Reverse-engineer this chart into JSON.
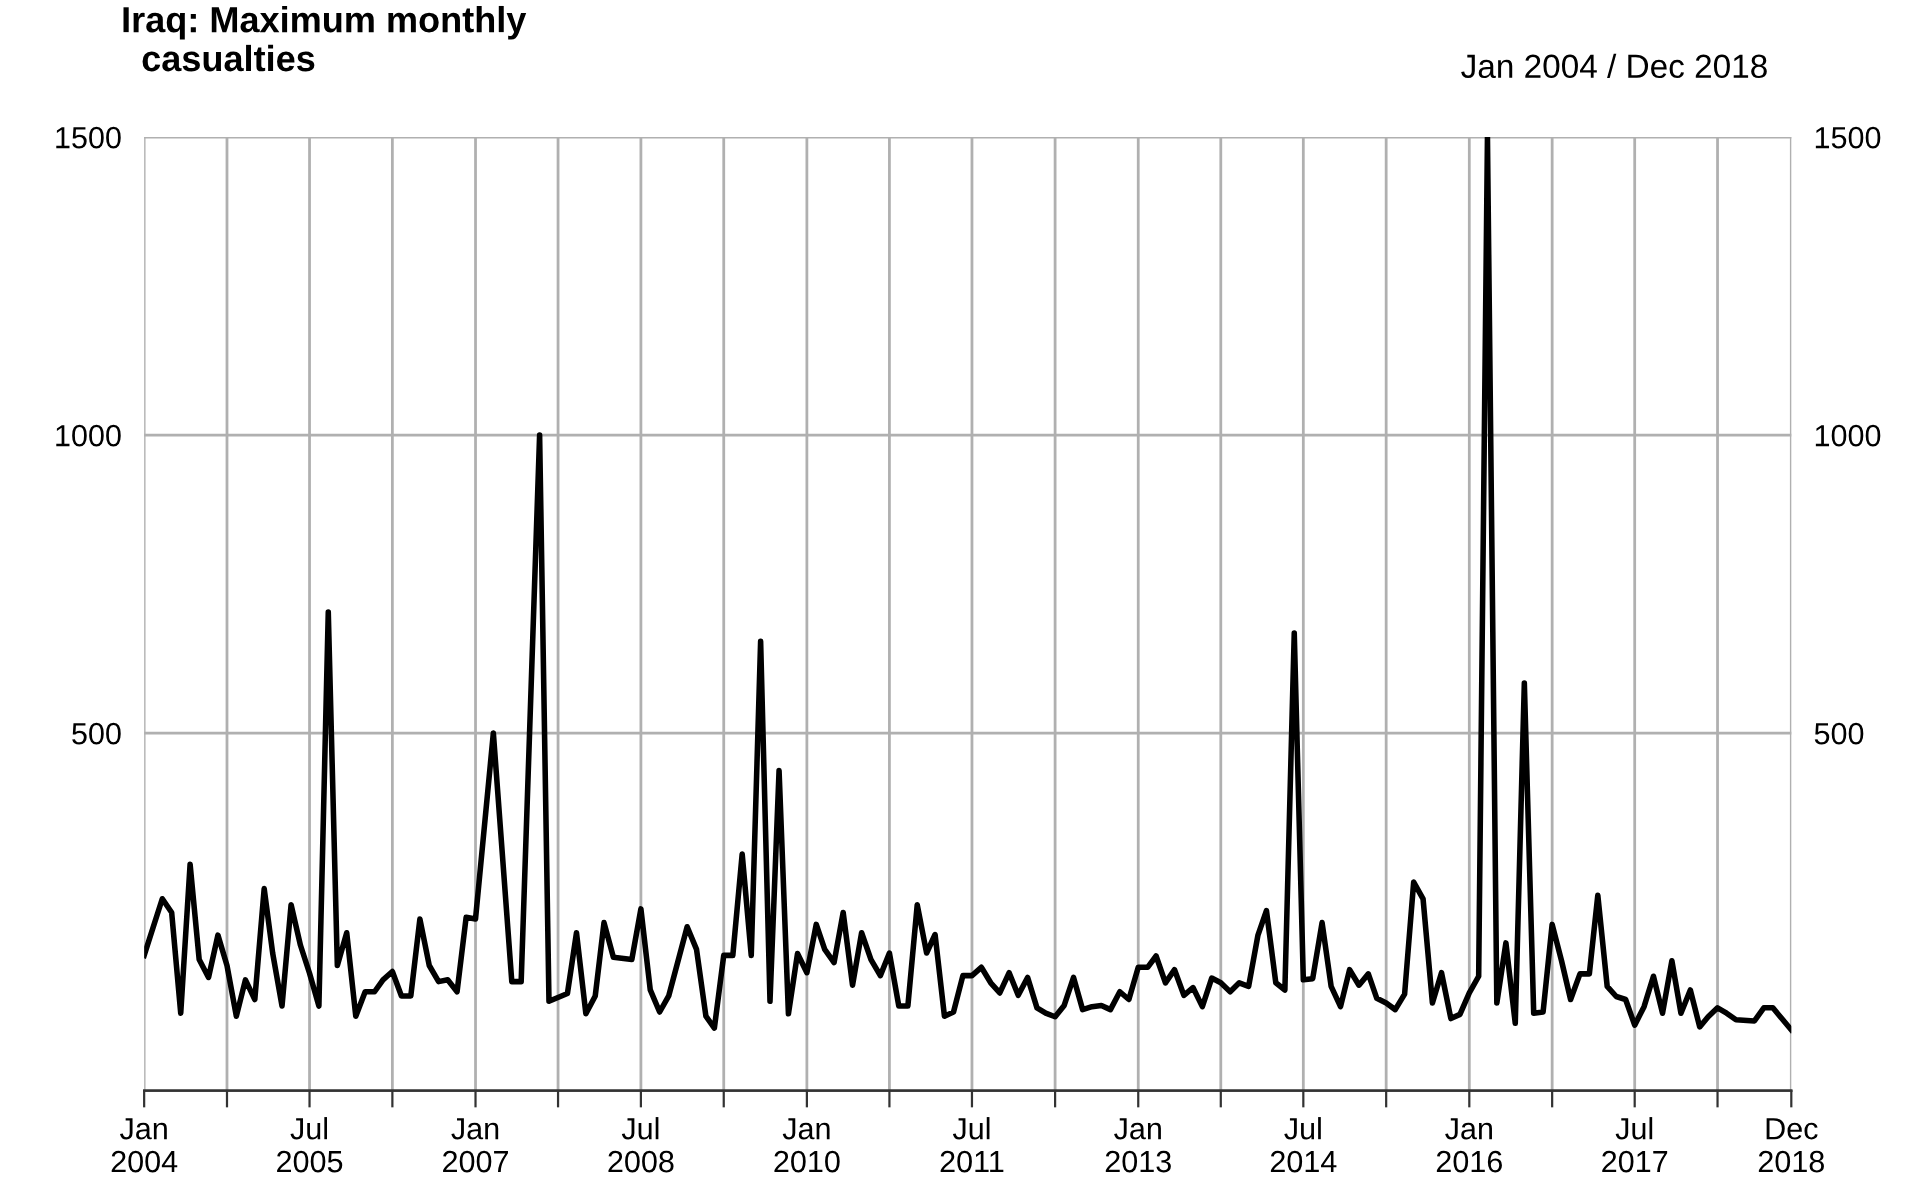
{
  "chart_data": {
    "type": "line",
    "title": "Iraq: Maximum monthly\n  casualties",
    "subtitle": "Jan 2004 / Dec 2018",
    "x": [
      "2004-01",
      "2004-03",
      "2004-04",
      "2004-05",
      "2004-06",
      "2004-07",
      "2004-08",
      "2004-09",
      "2004-10",
      "2004-11",
      "2004-12",
      "2005-01",
      "2005-02",
      "2005-03",
      "2005-04",
      "2005-05",
      "2005-06",
      "2005-07",
      "2005-08",
      "2005-09",
      "2005-10",
      "2005-11",
      "2005-12",
      "2006-01",
      "2006-02",
      "2006-03",
      "2006-04",
      "2006-05",
      "2006-06",
      "2006-07",
      "2006-08",
      "2006-09",
      "2006-10",
      "2006-11",
      "2006-12",
      "2007-01",
      "2007-03",
      "2007-05",
      "2007-06",
      "2007-08",
      "2007-09",
      "2007-11",
      "2007-12",
      "2008-01",
      "2008-02",
      "2008-03",
      "2008-04",
      "2008-06",
      "2008-07",
      "2008-08",
      "2008-09",
      "2008-10",
      "2008-12",
      "2009-01",
      "2009-02",
      "2009-03",
      "2009-04",
      "2009-05",
      "2009-06",
      "2009-07",
      "2009-08",
      "2009-09",
      "2009-10",
      "2009-11",
      "2009-12",
      "2010-01",
      "2010-02",
      "2010-03",
      "2010-04",
      "2010-05",
      "2010-06",
      "2010-07",
      "2010-08",
      "2010-09",
      "2010-10",
      "2010-11",
      "2010-12",
      "2011-01",
      "2011-02",
      "2011-03",
      "2011-04",
      "2011-05",
      "2011-06",
      "2011-07",
      "2011-08",
      "2011-09",
      "2011-10",
      "2011-11",
      "2011-12",
      "2012-01",
      "2012-02",
      "2012-03",
      "2012-04",
      "2012-05",
      "2012-06",
      "2012-07",
      "2012-08",
      "2012-09",
      "2012-10",
      "2012-11",
      "2012-12",
      "2013-01",
      "2013-02",
      "2013-03",
      "2013-04",
      "2013-05",
      "2013-06",
      "2013-07",
      "2013-08",
      "2013-09",
      "2013-10",
      "2013-11",
      "2013-12",
      "2014-01",
      "2014-02",
      "2014-03",
      "2014-04",
      "2014-05",
      "2014-06",
      "2014-07",
      "2014-08",
      "2014-09",
      "2014-10",
      "2014-11",
      "2014-12",
      "2015-01",
      "2015-02",
      "2015-03",
      "2015-04",
      "2015-05",
      "2015-06",
      "2015-07",
      "2015-08",
      "2015-09",
      "2015-10",
      "2015-11",
      "2015-12",
      "2016-01",
      "2016-02",
      "2016-03",
      "2016-04",
      "2016-05",
      "2016-06",
      "2016-07",
      "2016-08",
      "2016-09",
      "2016-10",
      "2016-11",
      "2016-12",
      "2017-01",
      "2017-02",
      "2017-03",
      "2017-04",
      "2017-05",
      "2017-06",
      "2017-07",
      "2017-08",
      "2017-09",
      "2017-10",
      "2017-11",
      "2017-12",
      "2018-01",
      "2018-02",
      "2018-03",
      "2018-04",
      "2018-05",
      "2018-06",
      "2018-08",
      "2018-09",
      "2018-10",
      "2018-12"
    ],
    "series": [
      {
        "color": "#000000",
        "values": [
          127,
          222,
          199,
          30,
          280,
          120,
          90,
          161,
          110,
          25,
          86,
          53,
          239,
          131,
          42,
          212,
          144,
          97,
          42,
          703,
          110,
          165,
          25,
          66,
          66,
          86,
          100,
          59,
          59,
          188,
          110,
          83,
          86,
          66,
          191,
          188,
          500,
          83,
          83,
          1000,
          50,
          63,
          165,
          29,
          59,
          182,
          124,
          120,
          205,
          69,
          32,
          59,
          175,
          137,
          25,
          5,
          127,
          127,
          297,
          127,
          654,
          50,
          437,
          29,
          130,
          98,
          179,
          137,
          115,
          199,
          77,
          165,
          120,
          93,
          131,
          42,
          42,
          212,
          131,
          162,
          25,
          32,
          93,
          93,
          107,
          81,
          64,
          98,
          60,
          90,
          39,
          30,
          24,
          43,
          90,
          36,
          41,
          43,
          36,
          66,
          53,
          107,
          107,
          126,
          81,
          103,
          60,
          73,
          41,
          89,
          81,
          66,
          81,
          75,
          161,
          202,
          81,
          69,
          668,
          86,
          88,
          182,
          75,
          41,
          103,
          77,
          96,
          55,
          47,
          36,
          62,
          250,
          222,
          47,
          98,
          21,
          28,
          64,
          92,
          1500,
          47,
          148,
          13,
          584,
          30,
          32,
          179,
          118,
          53,
          96,
          96,
          228,
          75,
          58,
          53,
          10,
          41,
          92,
          30,
          118,
          30,
          69,
          7,
          24,
          39,
          30,
          19,
          17,
          39,
          39,
          2
        ]
      }
    ],
    "xlim": [
      "2004-01",
      "2018-12"
    ],
    "xticks": [
      {
        "value": "2004-01",
        "label": "Jan\n2004"
      },
      {
        "value": "2004-10",
        "label": null
      },
      {
        "value": "2005-07",
        "label": "Jul\n2005"
      },
      {
        "value": "2006-04",
        "label": null
      },
      {
        "value": "2007-01",
        "label": "Jan\n2007"
      },
      {
        "value": "2007-10",
        "label": null
      },
      {
        "value": "2008-07",
        "label": "Jul\n2008"
      },
      {
        "value": "2009-04",
        "label": null
      },
      {
        "value": "2010-01",
        "label": "Jan\n2010"
      },
      {
        "value": "2010-10",
        "label": null
      },
      {
        "value": "2011-07",
        "label": "Jul\n2011"
      },
      {
        "value": "2012-04",
        "label": null
      },
      {
        "value": "2013-01",
        "label": "Jan\n2013"
      },
      {
        "value": "2013-10",
        "label": null
      },
      {
        "value": "2014-07",
        "label": "Jul\n2014"
      },
      {
        "value": "2015-04",
        "label": null
      },
      {
        "value": "2016-01",
        "label": "Jan\n2016"
      },
      {
        "value": "2016-10",
        "label": null
      },
      {
        "value": "2017-07",
        "label": "Jul\n2017"
      },
      {
        "value": "2018-04",
        "label": null
      },
      {
        "value": "2018-12",
        "label": "Dec\n2018"
      }
    ],
    "ylim": [
      -100,
      1500
    ],
    "yticks": [
      500,
      1000,
      1500
    ],
    "y2lim": [
      -100,
      1500
    ],
    "y2ticks": [
      500,
      1000,
      1500
    ],
    "grid": true,
    "marker": "none",
    "line_style": "solid"
  }
}
